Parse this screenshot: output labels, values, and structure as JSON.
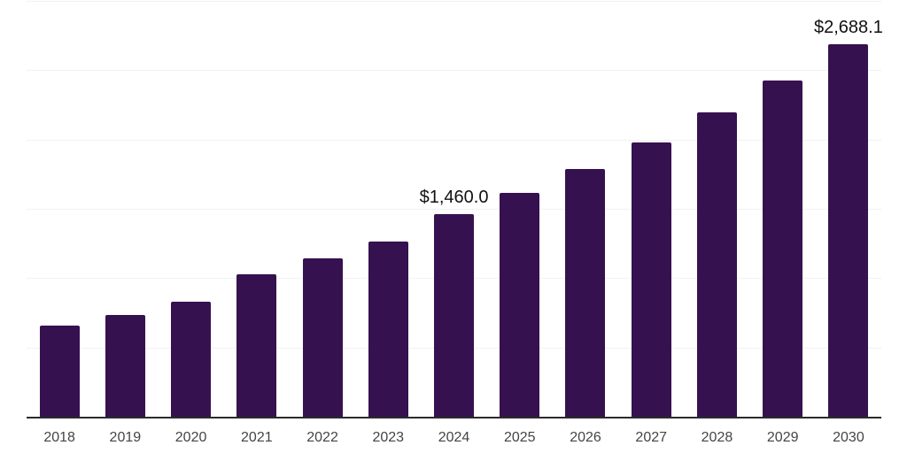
{
  "chart_data": {
    "type": "bar",
    "title": "",
    "xlabel": "",
    "ylabel": "",
    "categories": [
      "2018",
      "2019",
      "2020",
      "2021",
      "2022",
      "2023",
      "2024",
      "2025",
      "2026",
      "2027",
      "2028",
      "2029",
      "2030"
    ],
    "values": [
      660.0,
      733.0,
      830.0,
      1026.0,
      1140.0,
      1261.0,
      1460.0,
      1616.3,
      1789.4,
      1981.0,
      2193.1,
      2427.9,
      2688.1
    ],
    "labeled_points": [
      {
        "index": 6,
        "category": "2024",
        "text": "$1,460.0"
      },
      {
        "index": 12,
        "category": "2030",
        "text": "$2,688.1"
      }
    ],
    "ylim": [
      0,
      3000
    ],
    "gridline_interval": 500,
    "grid": "on",
    "legend": "none",
    "y_axis_labels_visible": false,
    "colors": {
      "bar": "#361150",
      "gridline": "#f2f2f2",
      "axis_line": "#2b2b2b",
      "tick_label": "#444444",
      "data_label": "#111111",
      "background": "#ffffff"
    }
  }
}
